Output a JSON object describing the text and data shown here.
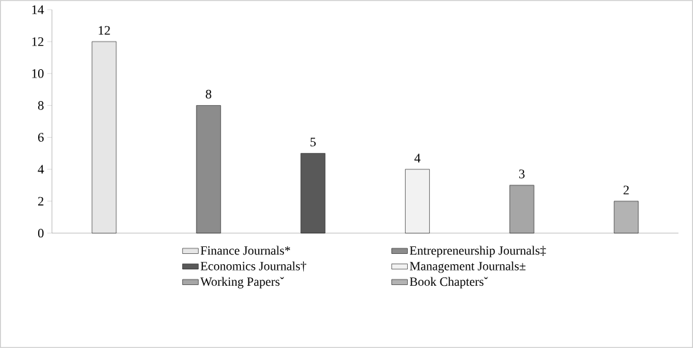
{
  "chart_data": {
    "type": "bar",
    "categories": [
      null,
      null,
      null,
      null,
      null,
      null
    ],
    "series": [
      {
        "name": "Finance Journals*",
        "color": "#e6e6e6",
        "values": [
          12,
          null,
          null,
          null,
          null,
          null
        ]
      },
      {
        "name": "Entrepreneurship Journals‡",
        "color": "#8c8c8c",
        "values": [
          null,
          8,
          null,
          null,
          null,
          null
        ]
      },
      {
        "name": "Economics Journals†",
        "color": "#595959",
        "values": [
          null,
          null,
          5,
          null,
          null,
          null
        ]
      },
      {
        "name": "Management Journals±",
        "color": "#f2f2f2",
        "values": [
          null,
          null,
          null,
          4,
          null,
          null
        ]
      },
      {
        "name": "Working Papersˇ",
        "color": "#a6a6a6",
        "values": [
          null,
          null,
          null,
          null,
          3,
          null
        ]
      },
      {
        "name": "Book Chaptersˇ",
        "color": "#b3b3b3",
        "values": [
          null,
          null,
          null,
          null,
          null,
          2
        ]
      }
    ],
    "ylim": [
      0,
      14
    ],
    "yticks": [
      0,
      2,
      4,
      6,
      8,
      10,
      12,
      14
    ],
    "data_labels": true,
    "legend": "bottom",
    "grid": false
  }
}
